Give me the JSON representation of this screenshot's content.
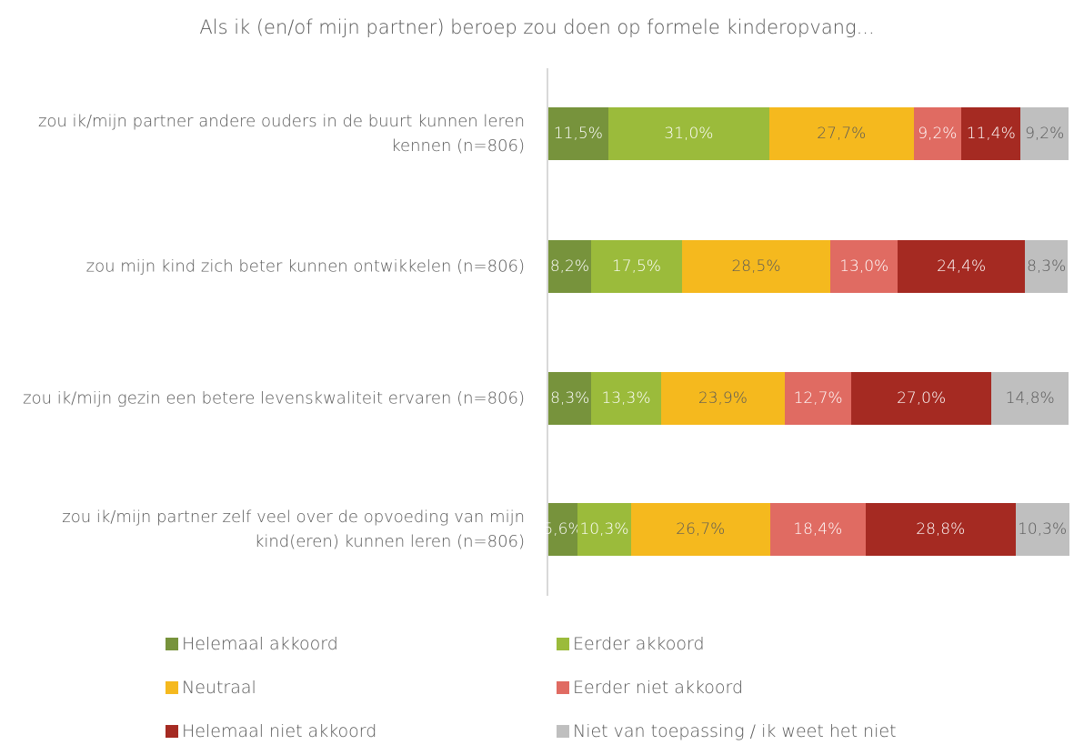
{
  "chart_data": {
    "type": "stacked_bar_horizontal",
    "title": "Als ik (en/of mijn partner) beroep zou doen op formele kinderopvang...",
    "categories": [
      "zou ik/mijn partner andere ouders in de buurt kunnen leren kennen (n=806)",
      "zou mijn kind zich beter kunnen ontwikkelen (n=806)",
      "zou ik/mijn gezin een betere levenskwaliteit ervaren (n=806)",
      "zou ik/mijn partner zelf veel over de opvoeding van mijn kind(eren) kunnen leren (n=806)"
    ],
    "xlim": [
      0,
      100
    ],
    "series": [
      {
        "name": "Helemaal akkoord",
        "color": "#77933c",
        "values": [
          11.5,
          8.2,
          8.3,
          5.6
        ],
        "value_labels": [
          "11,5%",
          "8,2%",
          "8,3%",
          "5,6%"
        ]
      },
      {
        "name": "Eerder akkoord",
        "color": "#9bbb3b",
        "values": [
          31.0,
          17.5,
          13.3,
          10.3
        ],
        "value_labels": [
          "31,0%",
          "17,5%",
          "13,3%",
          "10,3%"
        ]
      },
      {
        "name": "Neutraal",
        "color": "#f5b91e",
        "values": [
          27.7,
          28.5,
          23.9,
          26.7
        ],
        "value_labels": [
          "27,7%",
          "28,5%",
          "23,9%",
          "26,7%"
        ]
      },
      {
        "name": "Eerder niet akkoord",
        "color": "#e06b62",
        "values": [
          9.2,
          13.0,
          12.7,
          18.4
        ],
        "value_labels": [
          "9,2%",
          "13,0%",
          "12,7%",
          "18,4%"
        ]
      },
      {
        "name": "Helemaal niet akkoord",
        "color": "#a52a22",
        "values": [
          11.4,
          24.4,
          27.0,
          28.8
        ],
        "value_labels": [
          "11,4%",
          "24,4%",
          "27,0%",
          "28,8%"
        ]
      },
      {
        "name": "Niet van toepassing / ik weet het niet",
        "color": "#bfbfbf",
        "values": [
          9.2,
          8.3,
          14.8,
          10.3
        ],
        "value_labels": [
          "9,2%",
          "8,3%",
          "14,8%",
          "10,3%"
        ]
      }
    ]
  }
}
